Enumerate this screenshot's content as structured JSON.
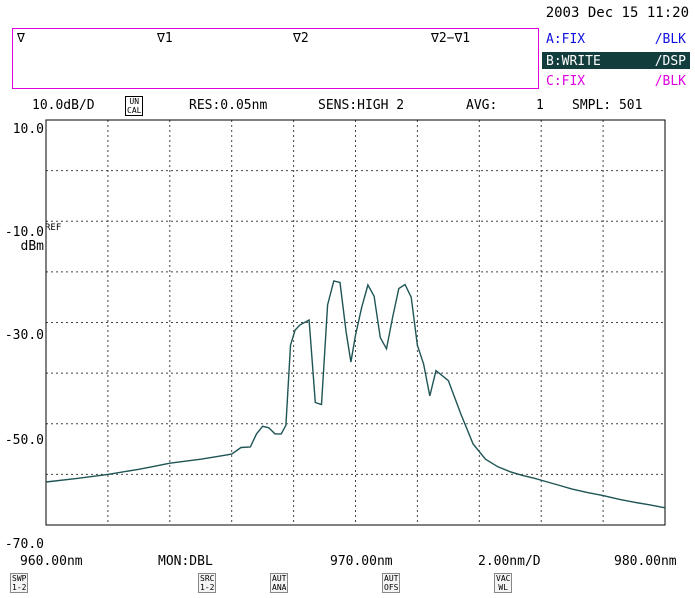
{
  "datetime": "2003 Dec 15 11:20",
  "markers": {
    "m0": "∇",
    "m1": "∇1",
    "m2": "∇2",
    "delta": "∇2−∇1"
  },
  "traces": [
    {
      "label": "A:FIX",
      "mode": "/BLK",
      "color": "#1010e0"
    },
    {
      "label": "B:WRITE",
      "mode": "/DSP",
      "color": "#ffffff"
    },
    {
      "label": "C:FIX",
      "mode": "/BLK",
      "color": "#e000e0"
    }
  ],
  "status": {
    "scale": "10.0dB/D",
    "uncal_line1": "UN",
    "uncal_line2": "CAL",
    "res": "RES:0.05nm",
    "sens": "SENS:HIGH 2",
    "avg_label": "AVG:",
    "avg_value": "1",
    "smpl": "SMPL: 501"
  },
  "axis_labels": {
    "y_top": "10.0",
    "y_ref": "-10.0",
    "ref": "REF",
    "unit": "dBm",
    "y_mid": "-30.0",
    "y_low": "-50.0",
    "y_bottom": "-70.0",
    "x_start": "960.00nm",
    "monitor": "MON:DBL",
    "x_center": "970.00nm",
    "x_span": "2.00nm/D",
    "x_end": "980.00nm"
  },
  "softkeys": [
    {
      "line1": "SWP",
      "line2": "1-2"
    },
    {
      "line1": "SRC",
      "line2": "1-2"
    },
    {
      "line1": "AUT",
      "line2": "ANA"
    },
    {
      "line1": "AUT",
      "line2": "OFS"
    },
    {
      "line1": "VAC",
      "line2": "WL"
    }
  ],
  "chart_data": {
    "type": "line",
    "xlim": [
      960,
      980
    ],
    "ylim": [
      -70,
      10
    ],
    "grid": true,
    "trace_color": "#1f5555",
    "series": [
      {
        "x": [
          960.0,
          961.0,
          962.0,
          963.0,
          963.5,
          964.0,
          964.5,
          965.0,
          965.5,
          966.0,
          966.3,
          966.6,
          966.8,
          967.0,
          967.2,
          967.4,
          967.6,
          967.75,
          967.9,
          968.05,
          968.2,
          968.5,
          968.7,
          968.9,
          969.1,
          969.3,
          969.5,
          969.7,
          969.85,
          970.0,
          970.2,
          970.4,
          970.6,
          970.8,
          971.0,
          971.2,
          971.4,
          971.6,
          971.8,
          972.0,
          972.2,
          972.4,
          972.6,
          973.0,
          973.4,
          973.8,
          974.2,
          974.6,
          975.0,
          975.4,
          975.8,
          976.2,
          976.6,
          977.0,
          977.5,
          978.0,
          978.5,
          979.0,
          979.5,
          980.0
        ],
        "y": [
          -61.5,
          -60.8,
          -60.0,
          -59.0,
          -58.4,
          -57.8,
          -57.4,
          -57.0,
          -56.5,
          -56.0,
          -54.7,
          -54.6,
          -52.0,
          -50.5,
          -50.8,
          -52.0,
          -52.0,
          -50.3,
          -34.5,
          -31.5,
          -30.5,
          -29.5,
          -45.8,
          -46.2,
          -26.5,
          -21.8,
          -22.1,
          -32.0,
          -37.8,
          -32.5,
          -27.0,
          -22.6,
          -24.8,
          -33.0,
          -35.2,
          -29.0,
          -23.3,
          -22.5,
          -25.0,
          -34.5,
          -38.2,
          -44.5,
          -39.5,
          -41.5,
          -48.0,
          -54.0,
          -57.0,
          -58.5,
          -59.5,
          -60.2,
          -60.8,
          -61.5,
          -62.2,
          -62.9,
          -63.6,
          -64.2,
          -64.9,
          -65.5,
          -66.0,
          -66.6
        ]
      }
    ]
  }
}
